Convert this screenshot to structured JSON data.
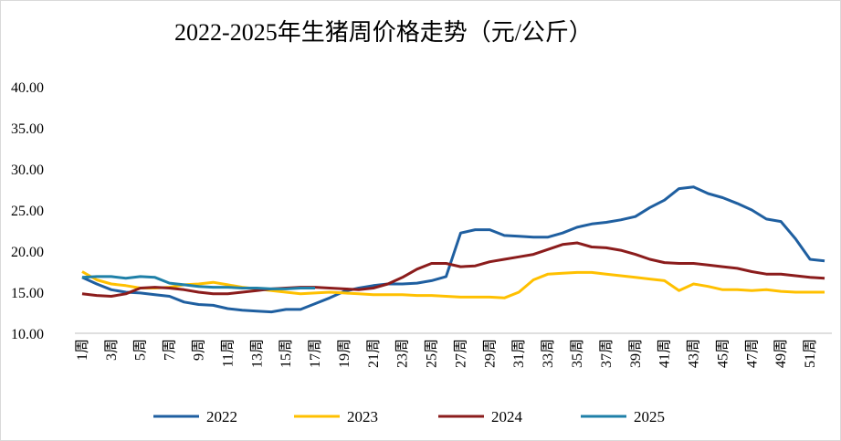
{
  "chart_data": {
    "type": "line",
    "title": "2022-2025年生猪周价格走势（元/公斤）",
    "categories": [
      "1周",
      null,
      "3周",
      null,
      "5周",
      null,
      "7周",
      null,
      "9周",
      null,
      "11周",
      null,
      "13周",
      null,
      "15周",
      null,
      "17周",
      null,
      "19周",
      null,
      "21周",
      null,
      "23周",
      null,
      "25周",
      null,
      "27周",
      null,
      "29周",
      null,
      "31周",
      null,
      "33周",
      null,
      "35周",
      null,
      "37周",
      null,
      "39周",
      null,
      "41周",
      null,
      "43周",
      null,
      "45周",
      null,
      "47周",
      null,
      "49周",
      null,
      "51周",
      null
    ],
    "ylim": [
      10,
      40
    ],
    "yticks": [
      {
        "value": 10,
        "label": "10.00"
      },
      {
        "value": 15,
        "label": "15.00"
      },
      {
        "value": 20,
        "label": "20.00"
      },
      {
        "value": 25,
        "label": "25.00"
      },
      {
        "value": 30,
        "label": "30.00"
      },
      {
        "value": 35,
        "label": "35.00"
      },
      {
        "value": 40,
        "label": "40.00"
      }
    ],
    "grid": false,
    "legend": "bottom",
    "series": [
      {
        "name": "2022",
        "color": "#1f5fa0",
        "values": [
          16.8,
          16.0,
          15.3,
          15.0,
          14.9,
          14.7,
          14.5,
          13.8,
          13.5,
          13.4,
          13.0,
          12.8,
          12.7,
          12.6,
          12.9,
          12.9,
          13.6,
          14.3,
          15.1,
          15.5,
          15.8,
          16.0,
          16.0,
          16.1,
          16.4,
          16.9,
          22.2,
          22.6,
          22.6,
          21.9,
          21.8,
          21.7,
          21.7,
          22.2,
          22.9,
          23.3,
          23.5,
          23.8,
          24.2,
          25.3,
          26.2,
          27.6,
          27.8,
          27.0,
          26.5,
          25.8,
          25.0,
          23.9,
          23.6,
          21.5,
          19.0,
          18.8
        ]
      },
      {
        "name": "2023",
        "color": "#ffc000",
        "values": [
          17.5,
          16.5,
          16.0,
          15.8,
          15.5,
          15.5,
          15.6,
          15.9,
          16.0,
          16.2,
          15.9,
          15.6,
          15.4,
          15.2,
          15.0,
          14.8,
          14.9,
          15.0,
          14.9,
          14.8,
          14.7,
          14.7,
          14.7,
          14.6,
          14.6,
          14.5,
          14.4,
          14.4,
          14.4,
          14.3,
          15.0,
          16.5,
          17.2,
          17.3,
          17.4,
          17.4,
          17.2,
          17.0,
          16.8,
          16.6,
          16.4,
          15.2,
          16.0,
          15.7,
          15.3,
          15.3,
          15.2,
          15.3,
          15.1,
          15.0,
          15.0,
          15.0
        ]
      },
      {
        "name": "2024",
        "color": "#8b1c1c",
        "values": [
          14.8,
          14.6,
          14.5,
          14.8,
          15.5,
          15.6,
          15.5,
          15.3,
          15.0,
          14.8,
          14.8,
          15.0,
          15.2,
          15.4,
          15.5,
          15.6,
          15.6,
          15.5,
          15.4,
          15.3,
          15.5,
          16.0,
          16.8,
          17.8,
          18.5,
          18.5,
          18.1,
          18.2,
          18.7,
          19.0,
          19.3,
          19.6,
          20.2,
          20.8,
          21.0,
          20.5,
          20.4,
          20.1,
          19.6,
          19.0,
          18.6,
          18.5,
          18.5,
          18.3,
          18.1,
          17.9,
          17.5,
          17.2,
          17.2,
          17.0,
          16.8,
          16.7
        ]
      },
      {
        "name": "2025",
        "color": "#1f80a8",
        "values": [
          16.8,
          16.9,
          16.9,
          16.7,
          16.9,
          16.8,
          16.1,
          15.9,
          15.7,
          15.6,
          15.6,
          15.5,
          15.5,
          15.4,
          15.4,
          15.5,
          15.5,
          null,
          null,
          null,
          null,
          null,
          null,
          null,
          null,
          null,
          null,
          null,
          null,
          null,
          null,
          null,
          null,
          null,
          null,
          null,
          null,
          null,
          null,
          null,
          null,
          null,
          null,
          null,
          null,
          null,
          null,
          null,
          null,
          null,
          null,
          null
        ]
      }
    ]
  }
}
